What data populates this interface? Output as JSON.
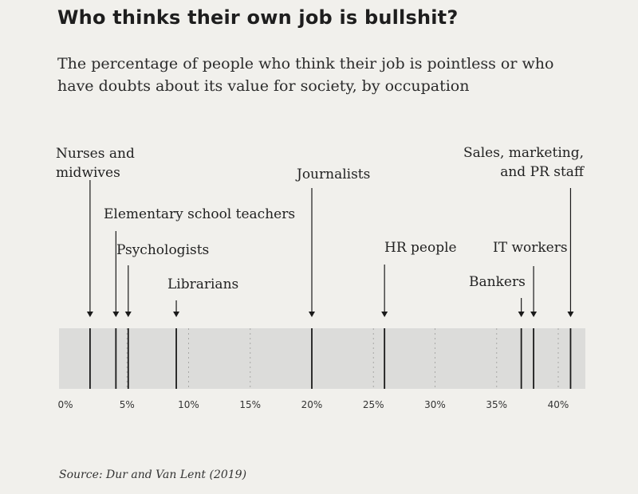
{
  "title": "Who thinks their own job is bullshit?",
  "subtitle": "The percentage of people who think their job is pointless or who have doubts about its value for society, by occupation",
  "source": "Source: Dur and Van Lent (2019)",
  "colors": {
    "band": "#dcdcda",
    "marker": "#1a1a1a",
    "background": "#f1f0ec"
  },
  "chart_data": {
    "type": "strip",
    "title": "Who thinks their own job is bullshit?",
    "xlim": [
      0,
      40
    ],
    "ticks": [
      0,
      5,
      10,
      15,
      20,
      25,
      30,
      35,
      40
    ],
    "tick_labels": [
      "0%",
      "5%",
      "10%",
      "15%",
      "20%",
      "25%",
      "30%",
      "35%",
      "40%"
    ],
    "grid": true,
    "points": [
      {
        "label": "Nurses and midwives",
        "lines": [
          "Nurses and",
          "midwives"
        ],
        "value": 2.0
      },
      {
        "label": "Elementary school teachers",
        "lines": [
          "Elementary school teachers"
        ],
        "value": 4.1
      },
      {
        "label": "Psychologists",
        "lines": [
          "Psychologists"
        ],
        "value": 5.1
      },
      {
        "label": "Librarians",
        "lines": [
          "Librarians"
        ],
        "value": 9.0
      },
      {
        "label": "Journalists",
        "lines": [
          "Journalists"
        ],
        "value": 20.0
      },
      {
        "label": "HR people",
        "lines": [
          "HR people"
        ],
        "value": 25.9
      },
      {
        "label": "Bankers",
        "lines": [
          "Bankers"
        ],
        "value": 37.0
      },
      {
        "label": "IT workers",
        "lines": [
          "IT workers"
        ],
        "value": 38.0
      },
      {
        "label": "Sales, marketing, and PR staff",
        "lines": [
          "Sales, marketing,",
          "and PR staff"
        ],
        "value": 41.0
      }
    ]
  }
}
